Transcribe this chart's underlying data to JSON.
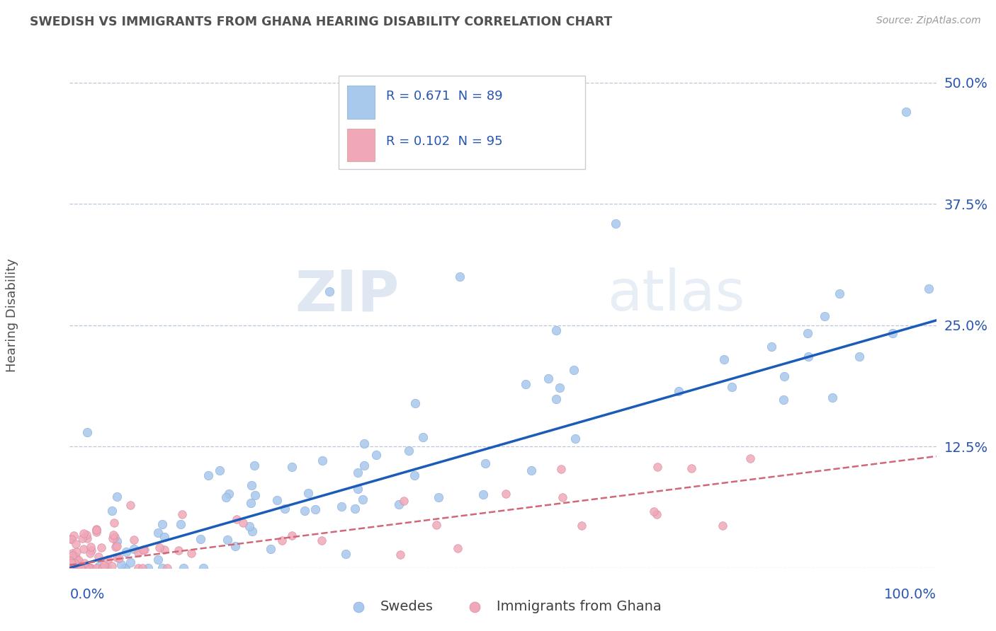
{
  "title": "SWEDISH VS IMMIGRANTS FROM GHANA HEARING DISABILITY CORRELATION CHART",
  "source": "Source: ZipAtlas.com",
  "ylabel": "Hearing Disability",
  "xlim": [
    0.0,
    1.0
  ],
  "ylim": [
    0.0,
    0.52
  ],
  "yticks": [
    0.0,
    0.125,
    0.25,
    0.375,
    0.5
  ],
  "ytick_labels": [
    "",
    "12.5%",
    "25.0%",
    "37.5%",
    "50.0%"
  ],
  "background_color": "#ffffff",
  "plot_bg_color": "#ffffff",
  "grid_color": "#b8c8d8",
  "swedish_color": "#a8c8ec",
  "ghana_color": "#f0a8b8",
  "swedish_line_color": "#1a5cb8",
  "ghana_line_color": "#d06878",
  "legend_label_1": "R = 0.671  N = 89",
  "legend_label_2": "R = 0.102  N = 95",
  "legend_color_1": "#a8c8ec",
  "legend_color_2": "#f0a8b8",
  "footer_label_1": "Swedes",
  "footer_label_2": "Immigrants from Ghana",
  "title_color": "#505050",
  "axis_label_color": "#2855b0",
  "watermark_zip": "ZIP",
  "watermark_atlas": "atlas",
  "R1": 0.671,
  "N1": 89,
  "R2": 0.102,
  "N2": 95,
  "sw_line_x0": 0.0,
  "sw_line_y0": 0.0,
  "sw_line_x1": 1.0,
  "sw_line_y1": 0.255,
  "gh_line_x0": 0.0,
  "gh_line_y0": 0.003,
  "gh_line_x1": 1.0,
  "gh_line_y1": 0.115
}
